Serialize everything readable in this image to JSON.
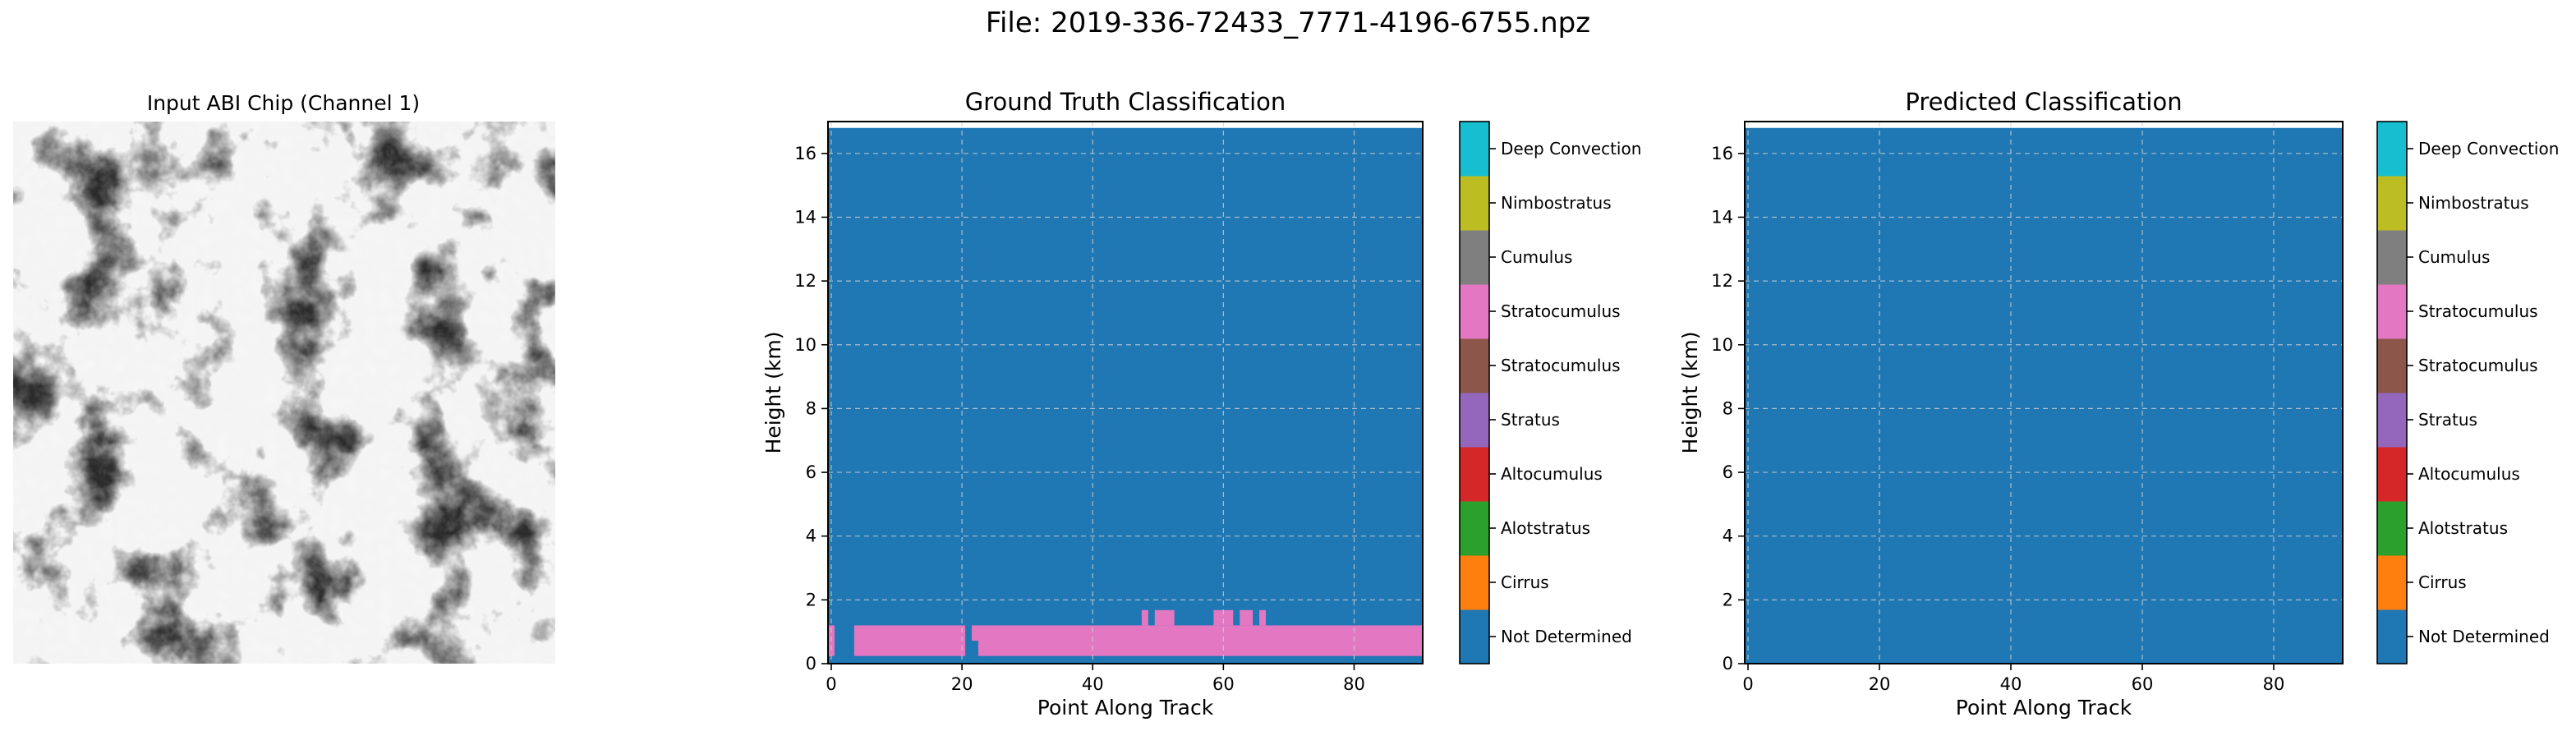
{
  "figure": {
    "suptitle": "File: 2019-336-72433_7771-4196-6755.npz"
  },
  "chart_data": [
    {
      "type": "image",
      "title": "Input ABI Chip (Channel 1)",
      "colormap": "gray",
      "axes_visible": false
    },
    {
      "type": "heatmap",
      "title": "Ground Truth Classification",
      "xlabel": "Point Along Track",
      "ylabel": "Height (km)",
      "xlim": [
        -0.5,
        90.5
      ],
      "ylim": [
        0,
        17
      ],
      "xticks": [
        0,
        20,
        40,
        60,
        80
      ],
      "yticks": [
        0,
        2,
        4,
        6,
        8,
        10,
        12,
        14,
        16
      ],
      "grid": true,
      "data_top_km": 16.8,
      "background_class": "Not Determined",
      "bands": [
        {
          "class": "Stratocumulus",
          "x_start": 0,
          "x_end": 1,
          "y_bottom": 0.24,
          "y_top": 1.2
        },
        {
          "class": "Stratocumulus",
          "x_start": 4,
          "x_end": 21,
          "y_bottom": 0.24,
          "y_top": 1.2
        },
        {
          "class": "Stratocumulus",
          "x_start": 23,
          "x_end": 91,
          "y_bottom": 0.24,
          "y_top": 1.2
        },
        {
          "class": "Stratocumulus",
          "x_start": 22,
          "x_end": 23,
          "y_bottom": 0.72,
          "y_top": 1.2
        },
        {
          "class": "Stratocumulus",
          "x_start": 48,
          "x_end": 49,
          "y_bottom": 1.2,
          "y_top": 1.68
        },
        {
          "class": "Stratocumulus",
          "x_start": 50,
          "x_end": 53,
          "y_bottom": 1.2,
          "y_top": 1.68
        },
        {
          "class": "Stratocumulus",
          "x_start": 59,
          "x_end": 62,
          "y_bottom": 1.2,
          "y_top": 1.68
        },
        {
          "class": "Stratocumulus",
          "x_start": 63,
          "x_end": 65,
          "y_bottom": 1.2,
          "y_top": 1.68
        },
        {
          "class": "Stratocumulus",
          "x_start": 66,
          "x_end": 67,
          "y_bottom": 1.2,
          "y_top": 1.68
        }
      ]
    },
    {
      "type": "heatmap",
      "title": "Predicted Classification",
      "xlabel": "Point Along Track",
      "ylabel": "Height (km)",
      "xlim": [
        -0.5,
        90.5
      ],
      "ylim": [
        0,
        17
      ],
      "xticks": [
        0,
        20,
        40,
        60,
        80
      ],
      "yticks": [
        0,
        2,
        4,
        6,
        8,
        10,
        12,
        14,
        16
      ],
      "grid": true,
      "data_top_km": 16.8,
      "background_class": "Not Determined",
      "bands": []
    }
  ],
  "colorbar": {
    "classes": [
      {
        "label": "Not Determined",
        "color": "#1f77b4"
      },
      {
        "label": "Cirrus",
        "color": "#ff7f0e"
      },
      {
        "label": "Alotstratus",
        "color": "#2ca02c"
      },
      {
        "label": "Altocumulus",
        "color": "#d62728"
      },
      {
        "label": "Stratus",
        "color": "#9467bd"
      },
      {
        "label": "Stratocumulus",
        "color": "#8c564b"
      },
      {
        "label": "Stratocumulus",
        "color": "#e377c2"
      },
      {
        "label": "Cumulus",
        "color": "#7f7f7f"
      },
      {
        "label": "Nimbostratus",
        "color": "#bcbd22"
      },
      {
        "label": "Deep Convection",
        "color": "#17becf"
      }
    ]
  }
}
